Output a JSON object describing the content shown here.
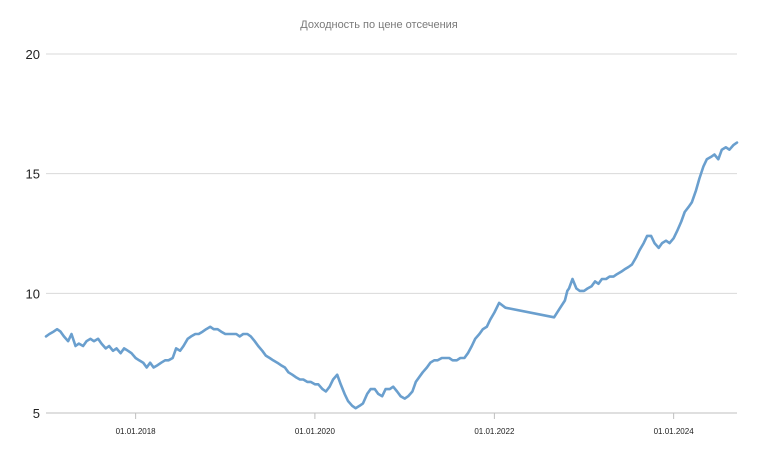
{
  "chart_data": {
    "type": "line",
    "title": "Доходность по цене отсечения",
    "xlabel": "",
    "ylabel": "",
    "ylim": [
      5,
      20
    ],
    "xlim": [
      "2017-01-01",
      "2024-09-15"
    ],
    "yticks": [
      5,
      10,
      15,
      20
    ],
    "xticks": [
      {
        "date": "2018-01-01",
        "label": "01.01.2018"
      },
      {
        "date": "2020-01-01",
        "label": "01.01.2020"
      },
      {
        "date": "2022-01-01",
        "label": "01.01.2022"
      },
      {
        "date": "2024-01-01",
        "label": "01.01.2024"
      }
    ],
    "grid": "horizontal",
    "line_color": "#6a9fce",
    "series": [
      {
        "name": "",
        "points": [
          [
            "2017-01-01",
            8.2
          ],
          [
            "2017-01-15",
            8.3
          ],
          [
            "2017-02-01",
            8.4
          ],
          [
            "2017-02-15",
            8.5
          ],
          [
            "2017-03-01",
            8.4
          ],
          [
            "2017-03-15",
            8.2
          ],
          [
            "2017-04-01",
            8.0
          ],
          [
            "2017-04-15",
            8.3
          ],
          [
            "2017-05-01",
            7.8
          ],
          [
            "2017-05-15",
            7.9
          ],
          [
            "2017-06-01",
            7.8
          ],
          [
            "2017-06-15",
            8.0
          ],
          [
            "2017-07-01",
            8.1
          ],
          [
            "2017-07-15",
            8.0
          ],
          [
            "2017-08-01",
            8.1
          ],
          [
            "2017-08-15",
            7.9
          ],
          [
            "2017-09-01",
            7.7
          ],
          [
            "2017-09-15",
            7.8
          ],
          [
            "2017-10-01",
            7.6
          ],
          [
            "2017-10-15",
            7.7
          ],
          [
            "2017-11-01",
            7.5
          ],
          [
            "2017-11-15",
            7.7
          ],
          [
            "2017-12-01",
            7.6
          ],
          [
            "2017-12-15",
            7.5
          ],
          [
            "2018-01-01",
            7.3
          ],
          [
            "2018-01-15",
            7.2
          ],
          [
            "2018-02-01",
            7.1
          ],
          [
            "2018-02-15",
            6.9
          ],
          [
            "2018-03-01",
            7.1
          ],
          [
            "2018-03-15",
            6.9
          ],
          [
            "2018-04-01",
            7.0
          ],
          [
            "2018-04-15",
            7.1
          ],
          [
            "2018-05-01",
            7.2
          ],
          [
            "2018-05-15",
            7.2
          ],
          [
            "2018-06-01",
            7.3
          ],
          [
            "2018-06-15",
            7.7
          ],
          [
            "2018-07-01",
            7.6
          ],
          [
            "2018-07-15",
            7.8
          ],
          [
            "2018-08-01",
            8.1
          ],
          [
            "2018-08-15",
            8.2
          ],
          [
            "2018-09-01",
            8.3
          ],
          [
            "2018-09-15",
            8.3
          ],
          [
            "2018-10-01",
            8.4
          ],
          [
            "2018-10-15",
            8.5
          ],
          [
            "2018-11-01",
            8.6
          ],
          [
            "2018-11-15",
            8.5
          ],
          [
            "2018-12-01",
            8.5
          ],
          [
            "2018-12-15",
            8.4
          ],
          [
            "2019-01-01",
            8.3
          ],
          [
            "2019-01-15",
            8.3
          ],
          [
            "2019-02-01",
            8.3
          ],
          [
            "2019-02-15",
            8.3
          ],
          [
            "2019-03-01",
            8.2
          ],
          [
            "2019-03-15",
            8.3
          ],
          [
            "2019-04-01",
            8.3
          ],
          [
            "2019-04-15",
            8.2
          ],
          [
            "2019-05-01",
            8.0
          ],
          [
            "2019-05-15",
            7.8
          ],
          [
            "2019-06-01",
            7.6
          ],
          [
            "2019-06-15",
            7.4
          ],
          [
            "2019-07-01",
            7.3
          ],
          [
            "2019-07-15",
            7.2
          ],
          [
            "2019-08-01",
            7.1
          ],
          [
            "2019-08-15",
            7.0
          ],
          [
            "2019-09-01",
            6.9
          ],
          [
            "2019-09-15",
            6.7
          ],
          [
            "2019-10-01",
            6.6
          ],
          [
            "2019-10-15",
            6.5
          ],
          [
            "2019-11-01",
            6.4
          ],
          [
            "2019-11-15",
            6.4
          ],
          [
            "2019-12-01",
            6.3
          ],
          [
            "2019-12-15",
            6.3
          ],
          [
            "2020-01-01",
            6.2
          ],
          [
            "2020-01-15",
            6.2
          ],
          [
            "2020-02-01",
            6.0
          ],
          [
            "2020-02-15",
            5.9
          ],
          [
            "2020-03-01",
            6.1
          ],
          [
            "2020-03-15",
            6.4
          ],
          [
            "2020-04-01",
            6.6
          ],
          [
            "2020-04-15",
            6.2
          ],
          [
            "2020-05-01",
            5.8
          ],
          [
            "2020-05-15",
            5.5
          ],
          [
            "2020-06-01",
            5.3
          ],
          [
            "2020-06-15",
            5.2
          ],
          [
            "2020-07-01",
            5.3
          ],
          [
            "2020-07-15",
            5.4
          ],
          [
            "2020-08-01",
            5.8
          ],
          [
            "2020-08-15",
            6.0
          ],
          [
            "2020-09-01",
            6.0
          ],
          [
            "2020-09-15",
            5.8
          ],
          [
            "2020-10-01",
            5.7
          ],
          [
            "2020-10-15",
            6.0
          ],
          [
            "2020-11-01",
            6.0
          ],
          [
            "2020-11-15",
            6.1
          ],
          [
            "2020-12-01",
            5.9
          ],
          [
            "2020-12-15",
            5.7
          ],
          [
            "2021-01-01",
            5.6
          ],
          [
            "2021-01-15",
            5.7
          ],
          [
            "2021-02-01",
            5.9
          ],
          [
            "2021-02-15",
            6.3
          ],
          [
            "2021-03-01",
            6.5
          ],
          [
            "2021-03-15",
            6.7
          ],
          [
            "2021-04-01",
            6.9
          ],
          [
            "2021-04-15",
            7.1
          ],
          [
            "2021-05-01",
            7.2
          ],
          [
            "2021-05-15",
            7.2
          ],
          [
            "2021-06-01",
            7.3
          ],
          [
            "2021-06-15",
            7.3
          ],
          [
            "2021-07-01",
            7.3
          ],
          [
            "2021-07-15",
            7.2
          ],
          [
            "2021-08-01",
            7.2
          ],
          [
            "2021-08-15",
            7.3
          ],
          [
            "2021-09-01",
            7.3
          ],
          [
            "2021-09-15",
            7.5
          ],
          [
            "2021-10-01",
            7.8
          ],
          [
            "2021-10-15",
            8.1
          ],
          [
            "2021-11-01",
            8.3
          ],
          [
            "2021-11-15",
            8.5
          ],
          [
            "2021-12-01",
            8.6
          ],
          [
            "2021-12-15",
            8.9
          ],
          [
            "2022-01-01",
            9.2
          ],
          [
            "2022-01-20",
            9.6
          ],
          [
            "2022-02-15",
            9.4
          ],
          [
            "2022-09-01",
            9.0
          ],
          [
            "2022-09-20",
            9.3
          ],
          [
            "2022-10-15",
            9.7
          ],
          [
            "2022-10-25",
            10.1
          ],
          [
            "2022-11-01",
            10.2
          ],
          [
            "2022-11-15",
            10.6
          ],
          [
            "2022-12-01",
            10.2
          ],
          [
            "2022-12-15",
            10.1
          ],
          [
            "2023-01-01",
            10.1
          ],
          [
            "2023-01-15",
            10.2
          ],
          [
            "2023-02-01",
            10.3
          ],
          [
            "2023-02-15",
            10.5
          ],
          [
            "2023-03-01",
            10.4
          ],
          [
            "2023-03-15",
            10.6
          ],
          [
            "2023-04-01",
            10.6
          ],
          [
            "2023-04-15",
            10.7
          ],
          [
            "2023-05-01",
            10.7
          ],
          [
            "2023-05-15",
            10.8
          ],
          [
            "2023-06-01",
            10.9
          ],
          [
            "2023-06-15",
            11.0
          ],
          [
            "2023-07-01",
            11.1
          ],
          [
            "2023-07-15",
            11.2
          ],
          [
            "2023-08-01",
            11.5
          ],
          [
            "2023-08-15",
            11.8
          ],
          [
            "2023-09-01",
            12.1
          ],
          [
            "2023-09-15",
            12.4
          ],
          [
            "2023-10-01",
            12.4
          ],
          [
            "2023-10-15",
            12.1
          ],
          [
            "2023-11-01",
            11.9
          ],
          [
            "2023-11-15",
            12.1
          ],
          [
            "2023-12-01",
            12.2
          ],
          [
            "2023-12-15",
            12.1
          ],
          [
            "2024-01-01",
            12.3
          ],
          [
            "2024-01-15",
            12.6
          ],
          [
            "2024-02-01",
            13.0
          ],
          [
            "2024-02-15",
            13.4
          ],
          [
            "2024-03-01",
            13.6
          ],
          [
            "2024-03-15",
            13.8
          ],
          [
            "2024-04-01",
            14.3
          ],
          [
            "2024-04-15",
            14.8
          ],
          [
            "2024-05-01",
            15.3
          ],
          [
            "2024-05-15",
            15.6
          ],
          [
            "2024-06-01",
            15.7
          ],
          [
            "2024-06-15",
            15.8
          ],
          [
            "2024-07-01",
            15.6
          ],
          [
            "2024-07-15",
            16.0
          ],
          [
            "2024-08-01",
            16.1
          ],
          [
            "2024-08-15",
            16.0
          ],
          [
            "2024-09-01",
            16.2
          ],
          [
            "2024-09-15",
            16.3
          ]
        ]
      }
    ]
  }
}
